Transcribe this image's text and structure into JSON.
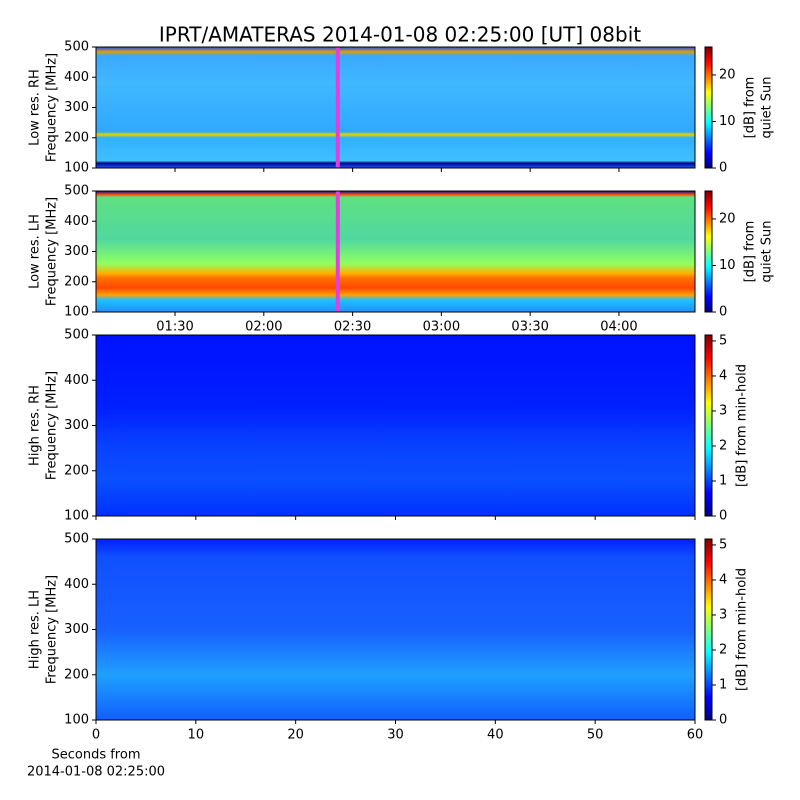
{
  "title": "IPRT/AMATERAS 2014-01-08 02:25:00 [UT]   08bit",
  "chart_data": [
    {
      "type": "spectrogram",
      "colormap": "jet",
      "ylabel": [
        "Low res. RH",
        "Frequency [MHz]"
      ],
      "ylim": [
        100,
        500
      ],
      "yticks": [
        100,
        200,
        300,
        400,
        500
      ],
      "xlim": [
        63.3,
        265.7
      ],
      "marker_x": 145,
      "marker_color": "#e040e0",
      "clabel": [
        "[dB] from",
        "quiet Sun"
      ],
      "clim": [
        0,
        26
      ],
      "cticks": [
        0,
        10,
        20
      ]
    },
    {
      "type": "spectrogram",
      "colormap": "jet",
      "ylabel": [
        "Low res. LH",
        "Frequency [MHz]"
      ],
      "ylim": [
        100,
        500
      ],
      "yticks": [
        100,
        200,
        300,
        400,
        500
      ],
      "xlim": [
        63.3,
        265.7
      ],
      "marker_x": 145,
      "marker_color": "#e040e0",
      "xticks": [
        {
          "value": 90,
          "label": "01:30"
        },
        {
          "value": 120,
          "label": "02:00"
        },
        {
          "value": 150,
          "label": "02:30"
        },
        {
          "value": 180,
          "label": "03:00"
        },
        {
          "value": 210,
          "label": "03:30"
        },
        {
          "value": 240,
          "label": "04:00"
        }
      ],
      "clabel": [
        "[dB] from",
        "quiet Sun"
      ],
      "clim": [
        0,
        26
      ],
      "cticks": [
        0,
        10,
        20
      ]
    },
    {
      "type": "spectrogram",
      "colormap": "jet",
      "ylabel": [
        "High res. RH",
        "Frequency [MHz]"
      ],
      "ylim": [
        100,
        500
      ],
      "yticks": [
        100,
        200,
        300,
        400,
        500
      ],
      "xlim": [
        0,
        60
      ],
      "clabel": [
        "[dB] from min-hold"
      ],
      "clim": [
        0,
        5.17
      ],
      "cticks": [
        0,
        1,
        2,
        3,
        4,
        5
      ]
    },
    {
      "type": "spectrogram",
      "colormap": "jet",
      "ylabel": [
        "High res. LH",
        "Frequency [MHz]"
      ],
      "ylim": [
        100,
        500
      ],
      "yticks": [
        100,
        200,
        300,
        400,
        500
      ],
      "xlim": [
        0,
        60
      ],
      "xticks": [
        0,
        10,
        20,
        30,
        40,
        50,
        60
      ],
      "xlabel": [
        "Seconds from",
        "2014-01-08 02:25:00"
      ],
      "clabel": [
        "[dB] from min-hold"
      ],
      "clim": [
        0,
        5.17
      ],
      "cticks": [
        0,
        1,
        2,
        3,
        4,
        5
      ]
    }
  ]
}
